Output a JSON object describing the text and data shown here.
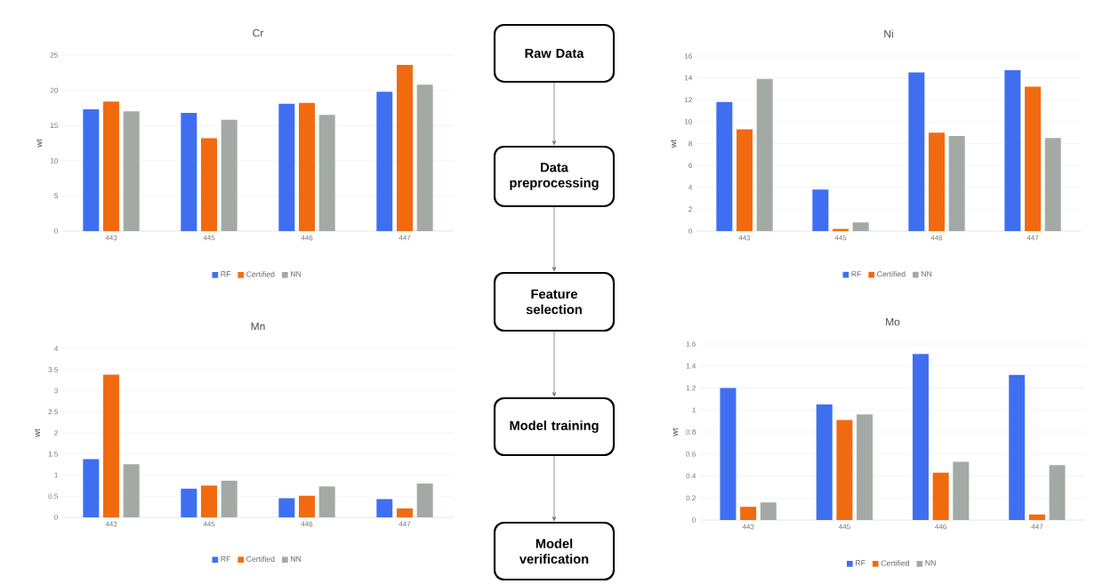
{
  "chart_data": [
    {
      "type": "bar",
      "title": "Cr",
      "ylabel": "wt",
      "categories": [
        "443",
        "445",
        "446",
        "447"
      ],
      "ylim": [
        0,
        25
      ],
      "yticks": [
        0,
        5,
        10,
        15,
        20,
        25
      ],
      "grid": "y",
      "legend": "bottom",
      "series": [
        {
          "name": "RF",
          "color": "#3f6ff0",
          "values": [
            17.3,
            16.8,
            18.1,
            19.8
          ]
        },
        {
          "name": "Certified",
          "color": "#f26a10",
          "values": [
            18.4,
            13.2,
            18.2,
            23.6
          ]
        },
        {
          "name": "NN",
          "color": "#a3aaa6",
          "values": [
            17.0,
            15.8,
            16.5,
            20.8
          ]
        }
      ]
    },
    {
      "type": "other",
      "annotations": [
        "Raw Data",
        "Data preprocessing",
        "Feature selection",
        "Model training",
        "Model verification"
      ]
    },
    {
      "type": "bar",
      "title": "Ni",
      "ylabel": "wt",
      "categories": [
        "443",
        "445",
        "446",
        "447"
      ],
      "ylim": [
        0,
        16
      ],
      "yticks": [
        0,
        2,
        4,
        6,
        8,
        10,
        12,
        14,
        16
      ],
      "grid": "y",
      "legend": "bottom",
      "series": [
        {
          "name": "RF",
          "color": "#3f6ff0",
          "values": [
            11.8,
            3.8,
            14.5,
            14.7
          ]
        },
        {
          "name": "Certified",
          "color": "#f26a10",
          "values": [
            9.3,
            0.2,
            9.0,
            13.2
          ]
        },
        {
          "name": "NN",
          "color": "#a3aaa6",
          "values": [
            13.9,
            0.8,
            8.7,
            8.5
          ]
        }
      ]
    },
    {
      "type": "bar",
      "title": "Mn",
      "ylabel": "wt",
      "categories": [
        "443",
        "445",
        "446",
        "447"
      ],
      "ylim": [
        0,
        4
      ],
      "yticks": [
        0,
        0.5,
        1,
        1.5,
        2,
        2.5,
        3,
        3.5,
        4
      ],
      "grid": "y",
      "legend": "bottom",
      "series": [
        {
          "name": "RF",
          "color": "#3f6ff0",
          "values": [
            1.38,
            0.68,
            0.45,
            0.43
          ]
        },
        {
          "name": "Certified",
          "color": "#f26a10",
          "values": [
            3.38,
            0.75,
            0.51,
            0.21
          ]
        },
        {
          "name": "NN",
          "color": "#a3aaa6",
          "values": [
            1.26,
            0.87,
            0.73,
            0.8
          ]
        }
      ]
    },
    {
      "type": "bar",
      "title": "Mo",
      "ylabel": "wt",
      "categories": [
        "443",
        "445",
        "446",
        "447"
      ],
      "ylim": [
        0,
        1.6
      ],
      "yticks": [
        0,
        0.2,
        0.4,
        0.6,
        0.8,
        1,
        1.2,
        1.4,
        1.6
      ],
      "grid": "y",
      "legend": "bottom",
      "series": [
        {
          "name": "RF",
          "color": "#3f6ff0",
          "values": [
            1.2,
            1.05,
            1.51,
            1.32
          ]
        },
        {
          "name": "Certified",
          "color": "#f26a10",
          "values": [
            0.12,
            0.91,
            0.43,
            0.05
          ]
        },
        {
          "name": "NN",
          "color": "#a3aaa6",
          "values": [
            0.16,
            0.96,
            0.53,
            0.5
          ]
        }
      ]
    }
  ]
}
